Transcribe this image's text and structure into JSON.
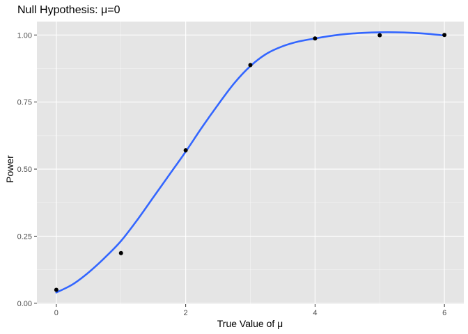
{
  "chart_data": {
    "type": "scatter",
    "title": "Null Hypothesis: μ=0",
    "xlabel": "True Value of μ",
    "ylabel": "Power",
    "xlim": [
      -0.3,
      6.3
    ],
    "ylim": [
      -0.0031,
      1.05
    ],
    "x_ticks": [
      0,
      2,
      4,
      6
    ],
    "x_tick_labels": [
      "0",
      "2",
      "4",
      "6"
    ],
    "y_ticks": [
      0,
      0.25,
      0.5,
      0.75,
      1.0
    ],
    "y_tick_labels": [
      "0.00",
      "0.25",
      "0.50",
      "0.75",
      "1.00"
    ],
    "grid": true,
    "legend": "none",
    "series": [
      {
        "type": "points",
        "x": [
          0,
          1,
          2,
          3,
          4,
          5,
          6
        ],
        "y": [
          0.05,
          0.187,
          0.57,
          0.888,
          0.987,
          0.999,
          1.0
        ]
      },
      {
        "type": "smooth-line",
        "x": [
          0,
          0.25,
          0.5,
          0.75,
          1,
          1.25,
          1.5,
          1.75,
          2,
          2.25,
          2.5,
          2.75,
          3,
          3.25,
          3.5,
          3.75,
          4,
          4.25,
          4.5,
          4.75,
          5,
          5.25,
          5.5,
          5.75,
          6
        ],
        "y": [
          0.04,
          0.07,
          0.115,
          0.17,
          0.232,
          0.31,
          0.395,
          0.48,
          0.565,
          0.655,
          0.74,
          0.82,
          0.884,
          0.93,
          0.958,
          0.976,
          0.987,
          0.997,
          1.004,
          1.008,
          1.01,
          1.01,
          1.008,
          1.004,
          0.998
        ]
      }
    ],
    "colors": {
      "panel": "#e5e5e5",
      "grid_major": "#ffffff",
      "line": "#3366ff",
      "point": "#000000",
      "tick": "#333333"
    }
  }
}
